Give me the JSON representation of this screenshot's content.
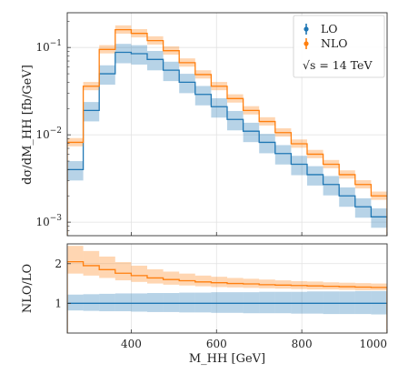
{
  "chart_data": [
    {
      "type": "line",
      "panel": "main",
      "step": "histogram",
      "ylabel": "dσ/dM_HH [fb/GeV]",
      "yscale": "log",
      "ylim": [
        0.0007,
        0.25
      ],
      "xlim": [
        250,
        1000
      ],
      "grid": true,
      "legend": "top-right",
      "annotation": "√s = 14 TeV",
      "y_ticks": [
        {
          "value": 0.001,
          "base": "10",
          "exp": "−3"
        },
        {
          "value": 0.01,
          "base": "10",
          "exp": "−2"
        },
        {
          "value": 0.1,
          "base": "10",
          "exp": "−1"
        }
      ],
      "bin_edges": [
        250,
        287.5,
        325,
        362.5,
        400,
        437.5,
        475,
        512.5,
        550,
        587.5,
        625,
        662.5,
        700,
        737.5,
        775,
        812.5,
        850,
        887.5,
        925,
        962.5,
        1000
      ],
      "series": [
        {
          "name": "LO",
          "color": "#1f77b4",
          "values": [
            0.004,
            0.019,
            0.05,
            0.088,
            0.085,
            0.073,
            0.055,
            0.04,
            0.029,
            0.021,
            0.015,
            0.011,
            0.0082,
            0.0061,
            0.0046,
            0.0035,
            0.0027,
            0.002,
            0.0015,
            0.00115
          ],
          "band_low_factor": 0.75,
          "band_high_factor": 1.25
        },
        {
          "name": "NLO",
          "color": "#ff7f0e",
          "values": [
            0.0082,
            0.036,
            0.095,
            0.16,
            0.145,
            0.12,
            0.092,
            0.067,
            0.049,
            0.036,
            0.026,
            0.019,
            0.0142,
            0.0106,
            0.0079,
            0.006,
            0.0046,
            0.0035,
            0.0027,
            0.002
          ],
          "band_low_factor": 0.9,
          "band_high_factor": 1.12
        }
      ]
    },
    {
      "type": "line",
      "panel": "ratio",
      "step": "histogram",
      "xlabel": "M_HH [GeV]",
      "ylabel": "NLO/LO",
      "ylim": [
        0.25,
        2.5
      ],
      "xlim": [
        250,
        1000
      ],
      "grid": true,
      "y_ticks": [
        1,
        2
      ],
      "x_ticks": [
        400,
        600,
        800,
        1000
      ],
      "series": [
        {
          "name": "LO",
          "color": "#1f77b4",
          "values": [
            1,
            1,
            1,
            1,
            1,
            1,
            1,
            1,
            1,
            1,
            1,
            1,
            1,
            1,
            1,
            1,
            1,
            1,
            1,
            1
          ],
          "band_low": [
            0.82,
            0.81,
            0.8,
            0.8,
            0.79,
            0.78,
            0.78,
            0.77,
            0.77,
            0.76,
            0.76,
            0.75,
            0.75,
            0.75,
            0.74,
            0.74,
            0.73,
            0.73,
            0.73,
            0.72
          ],
          "band_high": [
            1.22,
            1.23,
            1.24,
            1.25,
            1.25,
            1.26,
            1.26,
            1.27,
            1.27,
            1.28,
            1.28,
            1.28,
            1.29,
            1.29,
            1.29,
            1.3,
            1.3,
            1.3,
            1.31,
            1.31
          ]
        },
        {
          "name": "NLO",
          "color": "#ff7f0e",
          "values": [
            2.05,
            1.95,
            1.85,
            1.76,
            1.7,
            1.64,
            1.6,
            1.57,
            1.54,
            1.52,
            1.5,
            1.49,
            1.47,
            1.46,
            1.45,
            1.44,
            1.43,
            1.42,
            1.41,
            1.4
          ],
          "band_low": [
            1.75,
            1.7,
            1.64,
            1.58,
            1.54,
            1.5,
            1.47,
            1.45,
            1.43,
            1.41,
            1.4,
            1.39,
            1.38,
            1.37,
            1.36,
            1.35,
            1.35,
            1.34,
            1.33,
            1.33
          ],
          "band_high": [
            2.45,
            2.32,
            2.18,
            2.04,
            1.95,
            1.86,
            1.8,
            1.75,
            1.7,
            1.67,
            1.64,
            1.62,
            1.6,
            1.58,
            1.56,
            1.55,
            1.53,
            1.52,
            1.51,
            1.5
          ]
        }
      ]
    }
  ]
}
